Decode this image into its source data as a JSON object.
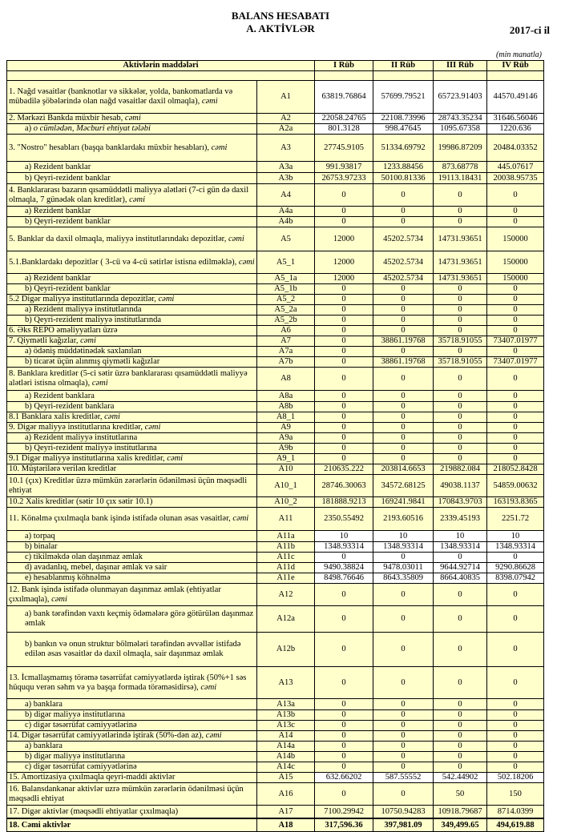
{
  "header": {
    "title": "BALANS HESABATI",
    "subtitle": "A. AKTİVLƏR",
    "year": "2017-ci il",
    "unit": "(min manatla)"
  },
  "columns": [
    "Aktivlərin   maddələri",
    "I Rüb",
    "II Rüb",
    "III Rüb",
    "IV Rüb"
  ],
  "rows": [
    {
      "label": "1. Nağd vəsaitlər (banknotlar və sikkələr, yolda, bankomatlarda və mübadilə şöbələrində olan nağd vəsaitlər daxil olmaqla), ",
      "em": "cəmi",
      "code": "A1",
      "values": [
        "63819.76864",
        "57699.79521",
        "65723.91403",
        "44570.49146"
      ]
    },
    {
      "label": "2. Mərkəzi Bankda müxbir hesab, ",
      "em": "cəmi",
      "code": "A2",
      "values": [
        "22058.24765",
        "22108.73996",
        "28743.35234",
        "31646.56046"
      ]
    },
    {
      "label": "a) ",
      "em": "o cümlədən, Məcburi ehtiyat tələbi",
      "code": "A2a",
      "values": [
        "801.3128",
        "998.47645",
        "1095.67358",
        "1220.636"
      ],
      "indent": true
    },
    {
      "label": "3. \"Nostro\" hesabları (başqa banklardakı müxbir hesabları), ",
      "em": "cəmi",
      "code": "A3",
      "values": [
        "27745.9105",
        "51334.69792",
        "19986.87209",
        "20484.03352"
      ]
    },
    {
      "label": "a) Rezident banklar",
      "code": "A3a",
      "values": [
        "991.93817",
        "1233.88456",
        "873.68778",
        "445.07617"
      ],
      "indent": true
    },
    {
      "label": "b) Qeyri-rezident banklar",
      "code": "A3b",
      "values": [
        "26753.97233",
        "50100.81336",
        "19113.18431",
        "20038.95735"
      ],
      "indent": true
    },
    {
      "label": "4. Banklararası bazarın qısamüddətli maliyyə alətləri (7-ci gün də daxil olmaqla, 7 günədək olan kreditlər), ",
      "em": "cəmi",
      "code": "A4",
      "values": [
        "0",
        "0",
        "0",
        "0"
      ]
    },
    {
      "label": "a) Rezident banklar",
      "code": "A4a",
      "values": [
        "0",
        "0",
        "0",
        "0"
      ],
      "indent": true
    },
    {
      "label": "b) Qeyri-rezident banklar",
      "code": "A4b",
      "values": [
        "0",
        "0",
        "0",
        "0"
      ],
      "indent": true
    },
    {
      "label": "5. Banklar da daxil olmaqla, maliyyə institutlarındakı depozitlər, ",
      "em": "cəmi",
      "code": "A5",
      "values": [
        "12000",
        "45202.5734",
        "14731.93651",
        "150000"
      ]
    },
    {
      "label": "5.1.Banklardakı depozitlər ( 3-cü və 4-cü sətirlər istisna edilməklə), ",
      "em": "cəmi",
      "code": "A5_1",
      "values": [
        "12000",
        "45202.5734",
        "14731.93651",
        "150000"
      ]
    },
    {
      "label": "a) Rezident banklar",
      "code": "A5_1a",
      "values": [
        "12000",
        "45202.5734",
        "14731.93651",
        "150000"
      ],
      "indent": true
    },
    {
      "label": "b) Qeyri-rezident banklar",
      "code": "A5_1b",
      "values": [
        "0",
        "0",
        "0",
        "0"
      ],
      "indent": true
    },
    {
      "label": "5.2 Digər maliyyə institutlarında depozitlər, ",
      "em": "cəmi",
      "code": "A5_2",
      "values": [
        "0",
        "0",
        "0",
        "0"
      ]
    },
    {
      "label": "a) Rezident maliyyə institutlarında",
      "code": "A5_2a",
      "values": [
        "0",
        "0",
        "0",
        "0"
      ],
      "indent": true
    },
    {
      "label": "b) Qeyri-rezident maliyyə institutlarında",
      "code": "A5_2b",
      "values": [
        "0",
        "0",
        "0",
        "0"
      ],
      "indent": true
    },
    {
      "label": "6. Əks REPO əməliyyatları üzrə",
      "code": "A6",
      "values": [
        "0",
        "0",
        "0",
        "0"
      ]
    },
    {
      "label": "7. Qiymətli kağızlar, ",
      "em": "cəmi",
      "code": "A7",
      "values": [
        "0",
        "38861.19768",
        "35718.91055",
        "73407.01977"
      ]
    },
    {
      "label": "a) ödəniş müddətinədək saxlanılan",
      "code": "A7a",
      "values": [
        "0",
        "0",
        "0",
        "0"
      ],
      "indent": true
    },
    {
      "label": "b) ticarət üçün alınmış qiymətli kağızlar",
      "code": "A7b",
      "values": [
        "0",
        "38861.19768",
        "35718.91055",
        "73407.01977"
      ],
      "indent": true
    },
    {
      "label": "8. Banklara kreditlər (5-ci sətir üzrə banklararası qısamüddətli maliyyə alətləri istisna olmaqla), ",
      "em": "cəmi",
      "code": "A8",
      "values": [
        "0",
        "0",
        "0",
        "0"
      ]
    },
    {
      "label": "a) Rezident banklara",
      "code": "A8a",
      "values": [
        "0",
        "0",
        "0",
        "0"
      ],
      "indent": true
    },
    {
      "label": "b) Qeyri-rezident banklara",
      "code": "A8b",
      "values": [
        "0",
        "0",
        "0",
        "0"
      ],
      "indent": true
    },
    {
      "label": "8.1 Banklara xalis kreditlər, ",
      "em": "cəmi",
      "code": "A8_1",
      "values": [
        "0",
        "0",
        "0",
        "0"
      ]
    },
    {
      "label": "9. Digər maliyyə institutlarına kreditlər, ",
      "em": "cəmi",
      "code": "A9",
      "values": [
        "0",
        "0",
        "0",
        "0"
      ]
    },
    {
      "label": "a) Rezident maliyyə institutlarına",
      "code": "A9a",
      "values": [
        "0",
        "0",
        "0",
        "0"
      ],
      "indent": true
    },
    {
      "label": "b) Qeyri-rezident maliyyə institutlarına",
      "code": "A9b",
      "values": [
        "0",
        "0",
        "0",
        "0"
      ],
      "indent": true
    },
    {
      "label": "9.1 Digər maliyyə institutlarına xalis kreditlər, ",
      "em": "cəmi",
      "code": "A9_1",
      "values": [
        "0",
        "0",
        "0",
        "0"
      ]
    },
    {
      "label": "10. Müştərilərə verilən kreditlər",
      "code": "A10",
      "values": [
        "210635.222",
        "203814.6653",
        "219882.084",
        "218052.8428"
      ]
    },
    {
      "label": "10.1 (çıx) Kreditlər üzrə mümkün zərərlərin ödənilməsi üçün məqsədli ehtiyat",
      "code": "A10_1",
      "values": [
        "28746.30063",
        "34572.68125",
        "49038.1137",
        "54859.00632"
      ]
    },
    {
      "label": "10.2 Xalis kreditlər (sətir 10 çıx sətir 10.1)",
      "code": "A10_2",
      "values": [
        "181888.9213",
        "169241.9841",
        "170843.9703",
        "163193.8365"
      ]
    },
    {
      "label": "11. Könəlmə çıxılmaqla bank işində istifadə olunan əsas vəsaitlər, ",
      "em": "cəmi",
      "code": "A11",
      "values": [
        "2350.55492",
        "2193.60516",
        "2339.45193",
        "2251.72"
      ]
    },
    {
      "label": "a) torpaq",
      "code": "A11a",
      "values": [
        "10",
        "10",
        "10",
        "10"
      ],
      "indent": true
    },
    {
      "label": "b) binalar",
      "code": "A11b",
      "values": [
        "1348.93314",
        "1348.93314",
        "1348.93314",
        "1348.93314"
      ],
      "indent": true
    },
    {
      "label": "c) tikilməkdə olan daşınmaz əmlak",
      "code": "A11c",
      "values": [
        "0",
        "0",
        "0",
        "0"
      ],
      "indent": true
    },
    {
      "label": "d) avadanlıq, mebel, daşınar əmlak və sair",
      "code": "A11d",
      "values": [
        "9490.38824",
        "9478.03011",
        "9644.92714",
        "9290.86628"
      ],
      "indent": true
    },
    {
      "label": "e) hesablanmış köhnəlmə",
      "code": "A11e",
      "values": [
        "8498.76646",
        "8643.35809",
        "8664.40835",
        "8398.07942"
      ],
      "indent": true
    },
    {
      "label": "12. Bank işində istifadə olunmayan daşınmaz əmlak (ehtiyatlar çıxılmaqla), ",
      "em": "cəmi",
      "code": "A12",
      "values": [
        "0",
        "0",
        "0",
        "0"
      ]
    },
    {
      "label": "a) bank tərəfindən vaxtı keçmiş ödəmələrə görə götürülən daşınmaz əmlak",
      "code": "A12a",
      "values": [
        "0",
        "0",
        "0",
        "0"
      ],
      "indent": true
    },
    {
      "label": "b) bankın və onun struktur bölmələri tərəfindən əvvəllər istifadə edilən əsas vəsaitlər də daxil olmaqla, sair daşınmaz əmlak",
      "code": "A12b",
      "values": [
        "0",
        "0",
        "0",
        "0"
      ],
      "indent": true
    },
    {
      "label": "13. İcmallaşmamış törəmə təsərrüfat cəmiyyətlərdə iştirak (50%+1 səs hüququ verən səhm və ya başqa formada törəməsidirsə), ",
      "em": "cəmi",
      "code": "A13",
      "values": [
        "0",
        "0",
        "0",
        "0"
      ]
    },
    {
      "label": "a) banklara",
      "code": "A13a",
      "values": [
        "0",
        "0",
        "0",
        "0"
      ],
      "indent": true
    },
    {
      "label": "b) digər maliyyə institutlarına",
      "code": "A13b",
      "values": [
        "0",
        "0",
        "0",
        "0"
      ],
      "indent": true
    },
    {
      "label": "c) digər təsərrüfat cəmiyyətlərinə",
      "code": "A13c",
      "values": [
        "0",
        "0",
        "0",
        "0"
      ],
      "indent": true
    },
    {
      "label": "14. Digər təsərrüfat cəmiyyətlərində iştirak (50%-dən az), ",
      "em": "cəmi",
      "code": "A14",
      "values": [
        "0",
        "0",
        "0",
        "0"
      ]
    },
    {
      "label": "a) banklara",
      "code": "A14a",
      "values": [
        "0",
        "0",
        "0",
        "0"
      ],
      "indent": true
    },
    {
      "label": "b) digər maliyyə institutlarına",
      "code": "A14b",
      "values": [
        "0",
        "0",
        "0",
        "0"
      ],
      "indent": true
    },
    {
      "label": "c) digər təsərrüfat cəmiyyətlərinə",
      "code": "A14c",
      "values": [
        "0",
        "0",
        "0",
        "0"
      ],
      "indent": true
    },
    {
      "label": "15. Amortizasiya çıxılmaqla qeyri-maddi aktivlər",
      "code": "A15",
      "values": [
        "632.66202",
        "587.55552",
        "542.44902",
        "502.18206"
      ]
    },
    {
      "label": "16. Balansdankənar aktivlər uzrə mümkün zərərlərin ödənilməsi üçün məqsədli ehtiyat",
      "code": "A16",
      "values": [
        "0",
        "0",
        "50",
        "150"
      ]
    },
    {
      "label": "17. Digər aktivlər (məqsədli ehtiyatlar çıxılmaqla)",
      "code": "A17",
      "values": [
        "7100.29942",
        "10750.94283",
        "10918.79687",
        "8714.0399"
      ]
    },
    {
      "label": "18. Cəmi aktivlər",
      "code": "A18",
      "values": [
        "317,596.36",
        "397,981.09",
        "349,499.65",
        "494,619.88"
      ],
      "bold": true
    }
  ]
}
